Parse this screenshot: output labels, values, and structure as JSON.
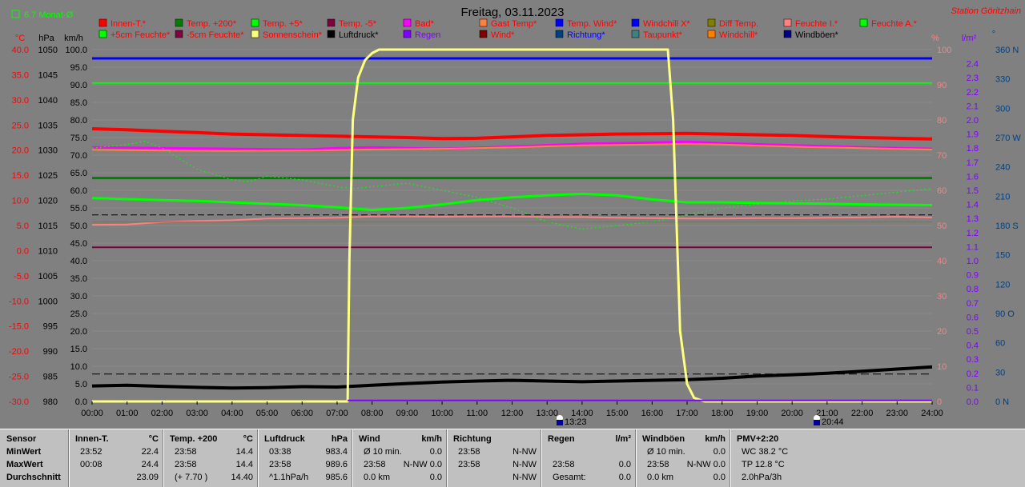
{
  "header": {
    "title": "Freitag, 03.11.2023",
    "station": "Station Göritzhain",
    "mean_label": "6.7 Monat-Ø"
  },
  "axes": {
    "c_unit": "°C",
    "hpa_unit": "hPa",
    "kmh_unit": "km/h",
    "pct_unit": "%",
    "lm2_unit": "l/m²",
    "deg_unit": "°",
    "c_ticks": [
      "40.0",
      "35.0",
      "30.0",
      "25.0",
      "20.0",
      "15.0",
      "10.0",
      "5.0",
      "0.0",
      "-5.0",
      "-10.0",
      "-15.0",
      "-20.0",
      "-25.0",
      "-30.0"
    ],
    "hpa_ticks": [
      "1050",
      "1045",
      "1040",
      "1035",
      "1030",
      "1025",
      "1020",
      "1015",
      "1010",
      "1005",
      "1000",
      "995",
      "990",
      "985",
      "980"
    ],
    "kmh_ticks": [
      "100.0",
      "95.0",
      "90.0",
      "85.0",
      "80.0",
      "75.0",
      "70.0",
      "65.0",
      "60.0",
      "55.0",
      "50.0",
      "45.0",
      "40.0",
      "35.0",
      "30.0",
      "25.0",
      "20.0",
      "15.0",
      "10.0",
      "5.0",
      "0.0"
    ],
    "pct_ticks": [
      "100",
      "90",
      "80",
      "70",
      "60",
      "50",
      "40",
      "30",
      "20",
      "10",
      "0"
    ],
    "lm2_ticks": [
      "2.4",
      "2.3",
      "2.2",
      "2.1",
      "2.0",
      "1.9",
      "1.8",
      "1.7",
      "1.6",
      "1.5",
      "1.4",
      "1.3",
      "1.2",
      "1.1",
      "1.0",
      "0.9",
      "0.8",
      "0.7",
      "0.6",
      "0.5",
      "0.4",
      "0.3",
      "0.2",
      "0.1",
      "0.0"
    ],
    "dir_ticks": [
      "360 N",
      "330",
      "300",
      "270 W",
      "240",
      "210",
      "180 S",
      "150",
      "120",
      "90 O",
      "60",
      "30",
      "0 N"
    ],
    "x_ticks": [
      "00:00",
      "01:00",
      "02:00",
      "03:00",
      "04:00",
      "05:00",
      "06:00",
      "07:00",
      "08:00",
      "09:00",
      "10:00",
      "11:00",
      "12:00",
      "13:00",
      "14:00",
      "15:00",
      "16:00",
      "17:00",
      "18:00",
      "19:00",
      "20:00",
      "21:00",
      "22:00",
      "23:00",
      "24:00"
    ]
  },
  "legend": [
    [
      {
        "label": "Innen-T.*",
        "color": "#ff0000",
        "text": "#ff0000"
      },
      {
        "label": "Temp. +200*",
        "color": "#008000",
        "text": "#ff0000"
      },
      {
        "label": "Temp. +5*",
        "color": "#00ff00",
        "text": "#ff0000"
      },
      {
        "label": "Temp. -5*",
        "color": "#800040",
        "text": "#ff0000"
      },
      {
        "label": "Bad*",
        "color": "#ff00ff",
        "text": "#ff0000"
      },
      {
        "label": "Gast Temp*",
        "color": "#ff8040",
        "text": "#ff0000"
      },
      {
        "label": "Temp. Wind*",
        "color": "#0000ff",
        "text": "#ff0000"
      },
      {
        "label": "Windchill X*",
        "color": "#0000ff",
        "text": "#ff0000"
      },
      {
        "label": "Diff Temp.",
        "color": "#808000",
        "text": "#ff0000"
      },
      {
        "label": "Feuchte I.*",
        "color": "#ff8080",
        "text": "#ff0000"
      },
      {
        "label": "Feuchte A.*",
        "color": "#00ff00",
        "text": "#ff0000"
      }
    ],
    [
      {
        "label": "+5cm Feuchte*",
        "color": "#00ff00",
        "text": "#ff0000"
      },
      {
        "label": "-5cm Feuchte*",
        "color": "#800040",
        "text": "#ff0000"
      },
      {
        "label": "Sonnenschein*",
        "color": "#ffff80",
        "text": "#ff0000"
      },
      {
        "label": "Luftdruck*",
        "color": "#000000",
        "text": "#000000"
      },
      {
        "label": "Regen",
        "color": "#8000ff",
        "text": "#8000ff"
      },
      {
        "label": "Wind*",
        "color": "#800000",
        "text": "#ff0000"
      },
      {
        "label": "Richtung*",
        "color": "#004080",
        "text": "#0000ff"
      },
      {
        "label": "Taupunkt*",
        "color": "#408080",
        "text": "#ff0000"
      },
      {
        "label": "Windchill*",
        "color": "#ff8000",
        "text": "#ff0000"
      },
      {
        "label": "Windböen*",
        "color": "#000080",
        "text": "#000000"
      }
    ]
  ],
  "markers": {
    "sunrise": "13:23",
    "sunset": "20:44"
  },
  "stats": {
    "row_labels": [
      "Sensor",
      "MinWert",
      "MaxWert",
      "Durchschnitt"
    ],
    "groups": [
      {
        "name": "Innen-T.",
        "unit": "°C",
        "rows": [
          [
            "23:52",
            "22.4"
          ],
          [
            "00:08",
            "24.4"
          ],
          [
            "",
            "23.09"
          ]
        ]
      },
      {
        "name": "Temp. +200",
        "unit": "°C",
        "rows": [
          [
            "23:58",
            "14.4"
          ],
          [
            "23:58",
            "14.4"
          ],
          [
            "(+ 7.70 )",
            "14.40"
          ]
        ]
      },
      {
        "name": "Luftdruck",
        "unit": "hPa",
        "rows": [
          [
            "03:38",
            "983.4"
          ],
          [
            "23:58",
            "989.6"
          ],
          [
            "^1.1hPa/h",
            "985.6"
          ]
        ]
      },
      {
        "name": "Wind",
        "unit": "km/h",
        "rows": [
          [
            "Ø 10 min.",
            "0.0"
          ],
          [
            "23:58",
            "N-NW 0.0"
          ],
          [
            "0.0 km",
            "0.0"
          ]
        ]
      },
      {
        "name": "Richtung",
        "unit": "",
        "rows": [
          [
            "23:58",
            "N-NW"
          ],
          [
            "23:58",
            "N-NW"
          ],
          [
            "",
            "N-NW"
          ]
        ]
      },
      {
        "name": "Regen",
        "unit": "l/m²",
        "rows": [
          [
            "",
            ""
          ],
          [
            "23:58",
            "0.0"
          ],
          [
            "Gesamt:",
            "0.0"
          ]
        ]
      },
      {
        "name": "Windböen",
        "unit": "km/h",
        "rows": [
          [
            "Ø 10 min.",
            "0.0"
          ],
          [
            "23:58",
            "N-NW 0.0"
          ],
          [
            "0.0 km",
            "0.0"
          ]
        ]
      },
      {
        "name": "PMV+2:20",
        "unit": "",
        "rows": [
          [
            "WC 38.2 °C",
            ""
          ],
          [
            "TP 12.8 °C",
            ""
          ],
          [
            "2.0hPa/3h",
            ""
          ]
        ]
      }
    ]
  },
  "chart_data": {
    "type": "line",
    "title": "Freitag, 03.11.2023",
    "x_unit": "hour",
    "xlim": [
      0,
      24
    ],
    "ylim_kmh": [
      0,
      100
    ],
    "grid": true,
    "series": [
      {
        "name": "Temp. Wind*",
        "color": "#0000ff",
        "width": 3,
        "x": [
          0,
          24
        ],
        "y": [
          97.5,
          97.5
        ]
      },
      {
        "name": "Temp. +5*",
        "color": "#00ff00",
        "width": 2,
        "x": [
          0,
          24
        ],
        "y": [
          90.5,
          90.5
        ]
      },
      {
        "name": "Innen-T.*",
        "color": "#ff0000",
        "width": 4,
        "x": [
          0,
          1,
          2,
          3,
          4,
          5,
          6,
          7,
          8,
          9,
          10,
          11,
          12,
          13,
          14,
          15,
          16,
          17,
          18,
          19,
          20,
          21,
          22,
          23,
          24
        ],
        "y": [
          77.5,
          77.2,
          76.8,
          76.4,
          76.0,
          75.8,
          75.6,
          75.4,
          75.2,
          75.0,
          74.7,
          74.8,
          75.2,
          75.6,
          75.8,
          76.0,
          76.1,
          76.2,
          76.0,
          75.8,
          75.6,
          75.3,
          75.0,
          74.8,
          74.6
        ]
      },
      {
        "name": "Bad*",
        "color": "#ff00ff",
        "width": 3,
        "x": [
          0,
          2,
          4,
          6,
          7,
          8,
          10,
          12,
          14,
          16,
          17,
          18,
          20,
          22,
          24
        ],
        "y": [
          72.2,
          72.0,
          71.8,
          71.6,
          72.0,
          72.2,
          71.8,
          72.4,
          73.2,
          73.6,
          73.8,
          73.4,
          72.8,
          72.2,
          71.8
        ]
      },
      {
        "name": "Gast Temp*",
        "color": "#ff8040",
        "width": 2,
        "x": [
          0,
          2,
          4,
          6,
          8,
          10,
          12,
          14,
          16,
          17,
          18,
          20,
          22,
          24
        ],
        "y": [
          71.5,
          71.3,
          71.2,
          71.3,
          71.6,
          71.8,
          72.2,
          72.8,
          73.0,
          73.2,
          73.0,
          72.4,
          72.0,
          71.6
        ]
      },
      {
        "name": "Temp. +200*",
        "color": "#008000",
        "width": 3,
        "x": [
          0,
          24
        ],
        "y": [
          63.5,
          63.5
        ]
      },
      {
        "name": "Feuchte A.*",
        "color": "#00ff00",
        "width": 3,
        "x": [
          0,
          1,
          2,
          3,
          4,
          5,
          6,
          7,
          8,
          9,
          10,
          11,
          12,
          13,
          14,
          15,
          16,
          17,
          18,
          19,
          20,
          21,
          22,
          23,
          24
        ],
        "y": [
          57.8,
          57.5,
          57.2,
          57.0,
          56.6,
          56.2,
          55.8,
          55.2,
          54.4,
          55.0,
          56.0,
          57.2,
          58.0,
          58.6,
          59.0,
          58.6,
          57.4,
          56.6,
          56.6,
          56.4,
          56.3,
          56.2,
          56.0,
          55.9,
          55.8
        ]
      },
      {
        "name": "+5cm Feuchte*",
        "color": "#00ff00",
        "width": 1,
        "dash": "2,3",
        "x": [
          0,
          1,
          1.5,
          2,
          3,
          4,
          4.5,
          5,
          6,
          7,
          7.5,
          8,
          9,
          10,
          11,
          12,
          13,
          14,
          15,
          16,
          17,
          18,
          19,
          20,
          21,
          22,
          23,
          24
        ],
        "y": [
          72,
          73,
          74,
          72,
          66,
          63,
          62.5,
          64,
          63,
          61,
          60.5,
          61,
          62,
          60,
          58,
          55,
          51,
          49,
          50,
          51,
          53,
          55,
          56,
          57,
          57.5,
          58.5,
          59.5,
          60.5
        ]
      },
      {
        "name": "Feuchte I.*",
        "color": "#ff8080",
        "width": 2,
        "x": [
          0,
          1,
          2,
          3,
          4,
          5,
          6,
          7,
          8,
          9,
          10,
          11,
          12,
          13,
          14,
          15,
          16,
          17,
          18,
          19,
          20,
          21,
          22,
          23,
          24
        ],
        "y": [
          50.2,
          50.3,
          51.0,
          51.3,
          51.5,
          52.0,
          52.1,
          52.2,
          52.6,
          52.6,
          52.5,
          52.6,
          52.6,
          52.4,
          52.4,
          52.2,
          52.1,
          52.0,
          52.0,
          52.1,
          52.1,
          52.2,
          52.3,
          52.5,
          52.3
        ]
      },
      {
        "name": "Taupunkt*",
        "color": "#808000",
        "width": 1,
        "x": [
          0,
          24
        ],
        "y": [
          51.0,
          51.0
        ]
      },
      {
        "name": "Windchill*",
        "color": "#000000",
        "width": 1,
        "dash": "8,4",
        "x": [
          0,
          24
        ],
        "y": [
          53.0,
          53.0
        ]
      },
      {
        "name": "Temp. -5*",
        "color": "#800040",
        "width": 2,
        "x": [
          0,
          24
        ],
        "y": [
          43.8,
          43.8
        ]
      },
      {
        "name": "Luftdruck*",
        "color": "#000000",
        "width": 4,
        "x": [
          0,
          1,
          2,
          3,
          4,
          5,
          6,
          7,
          8,
          9,
          10,
          11,
          12,
          13,
          14,
          15,
          16,
          17,
          18,
          19,
          20,
          21,
          22,
          23,
          24
        ],
        "y": [
          4.4,
          4.6,
          4.3,
          4.0,
          3.8,
          3.9,
          4.2,
          4.1,
          4.6,
          5.1,
          5.5,
          5.8,
          6.0,
          5.8,
          5.6,
          5.8,
          6.0,
          6.2,
          6.6,
          7.2,
          7.6,
          8.0,
          8.6,
          9.2,
          9.8
        ]
      },
      {
        "name": "Luftdruck-Mittel",
        "color": "#000000",
        "width": 1,
        "dash": "10,5",
        "x": [
          0,
          24
        ],
        "y": [
          7.8,
          7.8
        ]
      },
      {
        "name": "Sonnenschein*",
        "color": "#ffff80",
        "width": 3,
        "x": [
          0,
          7.3,
          7.35,
          7.45,
          7.6,
          7.8,
          8.0,
          8.2,
          12,
          16,
          16.45,
          16.6,
          16.8,
          17.0,
          17.2,
          17.5,
          24
        ],
        "y": [
          0,
          0,
          40,
          80,
          92,
          97,
          99,
          100,
          100,
          100,
          100,
          80,
          20,
          5,
          1,
          0,
          0
        ]
      },
      {
        "name": "Regen",
        "color": "#8000ff",
        "width": 2,
        "x": [
          7.3,
          24
        ],
        "y": [
          0.3,
          0.3
        ]
      }
    ]
  }
}
